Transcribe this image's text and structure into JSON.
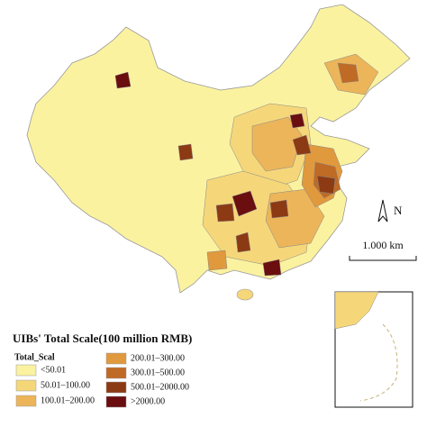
{
  "title": "UIBs' Total Scale(100 million RMB)",
  "legend_title": "Total_Scal",
  "classes": [
    {
      "label": "<50.01",
      "color": "#fbf2a0"
    },
    {
      "label": "50.01–100.00",
      "color": "#f5d77a"
    },
    {
      "label": "100.01–200.00",
      "color": "#ecb55a"
    },
    {
      "label": "200.01–300.00",
      "color": "#e0993c"
    },
    {
      "label": "300.01–500.00",
      "color": "#bf6a25"
    },
    {
      "label": "500.01–2000.00",
      "color": "#8c3a14"
    },
    {
      "label": ">2000.00",
      "color": "#6a0e10"
    }
  ],
  "north_label": "N",
  "scale_label": "1.000 km"
}
